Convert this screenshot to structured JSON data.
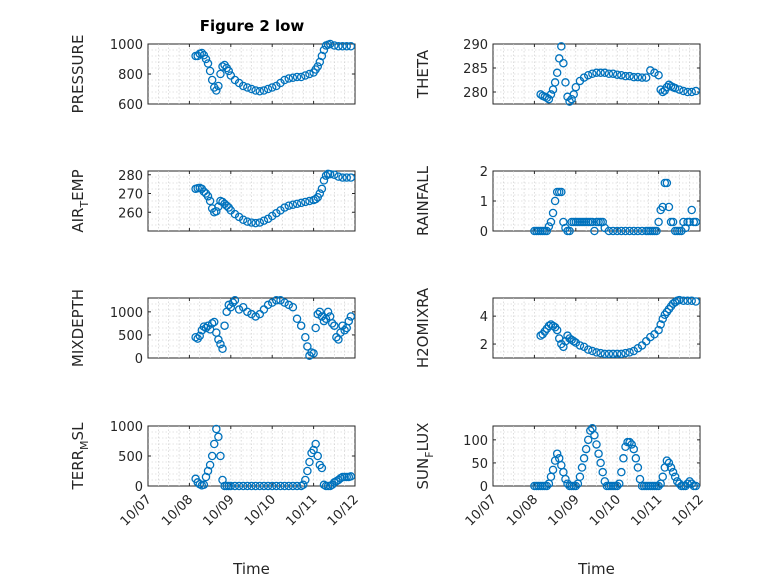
{
  "figure": {
    "title": "Figure 2 low",
    "xlabel": "Time",
    "xticks": [
      "10/07",
      "10/08",
      "10/09",
      "10/10",
      "10/11",
      "10/12"
    ],
    "marker_color": "#0072BD"
  },
  "chart_data": [
    {
      "type": "scatter",
      "ylabel": "PRESSURE",
      "xlim": [
        0,
        5
      ],
      "ylim": [
        600,
        1000
      ],
      "yticks": [
        600,
        800,
        1000
      ],
      "grid": true,
      "x": [
        1.15,
        1.2,
        1.25,
        1.3,
        1.35,
        1.4,
        1.45,
        1.5,
        1.55,
        1.6,
        1.65,
        1.7,
        1.75,
        1.8,
        1.85,
        1.9,
        1.95,
        2.0,
        2.1,
        2.2,
        2.3,
        2.4,
        2.5,
        2.6,
        2.7,
        2.8,
        2.9,
        3.0,
        3.1,
        3.2,
        3.3,
        3.4,
        3.5,
        3.6,
        3.7,
        3.8,
        3.9,
        4.0,
        4.05,
        4.1,
        4.15,
        4.2,
        4.25,
        4.3,
        4.35,
        4.4,
        4.5,
        4.6,
        4.7,
        4.8,
        4.9
      ],
      "y": [
        920,
        920,
        935,
        940,
        925,
        900,
        870,
        820,
        760,
        710,
        690,
        720,
        800,
        850,
        860,
        840,
        820,
        790,
        760,
        740,
        720,
        710,
        700,
        690,
        685,
        690,
        700,
        710,
        720,
        740,
        760,
        770,
        775,
        780,
        780,
        790,
        800,
        810,
        830,
        850,
        880,
        920,
        960,
        990,
        995,
        1000,
        990,
        985,
        985,
        985,
        985
      ]
    },
    {
      "type": "scatter",
      "ylabel": "THETA",
      "xlim": [
        0,
        5
      ],
      "ylim": [
        277.5,
        290
      ],
      "yticks": [
        280,
        285,
        290
      ],
      "grid": true,
      "x": [
        1.15,
        1.2,
        1.25,
        1.3,
        1.35,
        1.4,
        1.45,
        1.5,
        1.55,
        1.6,
        1.65,
        1.7,
        1.75,
        1.8,
        1.85,
        1.9,
        1.95,
        2.0,
        2.1,
        2.2,
        2.3,
        2.4,
        2.5,
        2.6,
        2.7,
        2.8,
        2.9,
        3.0,
        3.1,
        3.2,
        3.3,
        3.4,
        3.5,
        3.6,
        3.7,
        3.8,
        3.9,
        4.0,
        4.05,
        4.1,
        4.15,
        4.2,
        4.25,
        4.3,
        4.35,
        4.4,
        4.5,
        4.6,
        4.7,
        4.8,
        4.9
      ],
      "y": [
        279.5,
        279.2,
        279.0,
        278.8,
        278.5,
        279.5,
        280.5,
        282,
        284,
        287,
        289.5,
        286,
        282,
        279,
        278,
        278.5,
        279.5,
        281,
        282.3,
        283,
        283.5,
        283.8,
        284,
        284,
        284,
        283.8,
        283.8,
        283.6,
        283.5,
        283.3,
        283.3,
        283.1,
        283.1,
        283,
        283,
        284.5,
        284,
        283.5,
        280.5,
        280,
        280.3,
        281,
        281.5,
        281.2,
        281,
        280.8,
        280.5,
        280.2,
        280.0,
        280.0,
        280.2
      ]
    },
    {
      "type": "scatter",
      "ylabel": "AIR_T EMP",
      "xlim": [
        0,
        5
      ],
      "ylim": [
        250,
        282
      ],
      "yticks": [
        260,
        270,
        280
      ],
      "grid": true,
      "x": [
        1.15,
        1.2,
        1.25,
        1.3,
        1.35,
        1.4,
        1.45,
        1.5,
        1.55,
        1.6,
        1.65,
        1.7,
        1.75,
        1.8,
        1.85,
        1.9,
        1.95,
        2.0,
        2.1,
        2.2,
        2.3,
        2.4,
        2.5,
        2.6,
        2.7,
        2.8,
        2.9,
        3.0,
        3.1,
        3.2,
        3.3,
        3.4,
        3.5,
        3.6,
        3.7,
        3.8,
        3.9,
        4.0,
        4.05,
        4.1,
        4.15,
        4.2,
        4.25,
        4.3,
        4.35,
        4.4,
        4.5,
        4.6,
        4.7,
        4.8,
        4.9
      ],
      "y": [
        272.5,
        272.8,
        273,
        272.5,
        271,
        270,
        268.5,
        266,
        262,
        260,
        260.5,
        263,
        266,
        265.5,
        264.5,
        263.5,
        262.5,
        261,
        259,
        257.5,
        256,
        255,
        254.5,
        254.2,
        254.5,
        255.5,
        256.5,
        258,
        259.5,
        261,
        262.5,
        263.5,
        264,
        264.5,
        265,
        265.5,
        266,
        266.5,
        267,
        268,
        270,
        272.5,
        277,
        279.5,
        280.5,
        280.3,
        280,
        279,
        278.5,
        278.5,
        278.5
      ]
    },
    {
      "type": "scatter",
      "ylabel": "RAINFALL",
      "xlim": [
        0,
        5
      ],
      "ylim": [
        0,
        2
      ],
      "yticks": [
        0,
        1,
        2
      ],
      "grid": true,
      "x": [
        1.0,
        1.05,
        1.1,
        1.15,
        1.2,
        1.25,
        1.3,
        1.35,
        1.4,
        1.45,
        1.5,
        1.55,
        1.6,
        1.65,
        1.7,
        1.75,
        1.8,
        1.85,
        1.9,
        1.95,
        2.0,
        2.05,
        2.1,
        2.15,
        2.2,
        2.25,
        2.3,
        2.35,
        2.4,
        2.45,
        2.5,
        2.55,
        2.6,
        2.65,
        2.7,
        2.8,
        2.9,
        3.0,
        3.1,
        3.2,
        3.3,
        3.4,
        3.5,
        3.6,
        3.7,
        3.75,
        3.8,
        3.85,
        3.9,
        3.95,
        4.0,
        4.05,
        4.1,
        4.15,
        4.2,
        4.25,
        4.3,
        4.35,
        4.4,
        4.45,
        4.5,
        4.55,
        4.6,
        4.65,
        4.7,
        4.75,
        4.8,
        4.85,
        4.9
      ],
      "y": [
        0,
        0,
        0,
        0,
        0,
        0,
        0,
        0.15,
        0.3,
        0.6,
        1.0,
        1.3,
        1.3,
        1.3,
        0.3,
        0.1,
        0,
        0,
        0.3,
        0.3,
        0.3,
        0.3,
        0.3,
        0.3,
        0.3,
        0.3,
        0.3,
        0.3,
        0.3,
        0,
        0.3,
        0.3,
        0.3,
        0.3,
        0.1,
        0,
        0,
        0,
        0,
        0,
        0,
        0,
        0,
        0,
        0,
        0,
        0,
        0,
        0,
        0,
        0.3,
        0.7,
        0.8,
        1.6,
        1.6,
        0.8,
        0.3,
        0.3,
        0,
        0,
        0,
        0,
        0.3,
        0.1,
        0.3,
        0.3,
        0.7,
        0.3,
        0.3
      ]
    },
    {
      "type": "scatter",
      "ylabel": "MIXDEPTH",
      "xlim": [
        0,
        5
      ],
      "ylim": [
        0,
        1300
      ],
      "yticks": [
        0,
        500,
        1000
      ],
      "grid": true,
      "x": [
        1.15,
        1.2,
        1.25,
        1.3,
        1.35,
        1.4,
        1.45,
        1.5,
        1.55,
        1.6,
        1.65,
        1.7,
        1.75,
        1.8,
        1.85,
        1.9,
        1.95,
        2.0,
        2.05,
        2.1,
        2.2,
        2.3,
        2.4,
        2.5,
        2.6,
        2.7,
        2.8,
        2.9,
        3.0,
        3.1,
        3.2,
        3.3,
        3.4,
        3.5,
        3.6,
        3.7,
        3.8,
        3.85,
        3.9,
        3.95,
        4.0,
        4.05,
        4.1,
        4.15,
        4.2,
        4.25,
        4.3,
        4.35,
        4.4,
        4.45,
        4.5,
        4.55,
        4.6,
        4.65,
        4.7,
        4.75,
        4.8,
        4.85,
        4.9
      ],
      "y": [
        450,
        420,
        480,
        600,
        680,
        650,
        700,
        620,
        750,
        780,
        550,
        400,
        300,
        200,
        700,
        1000,
        1150,
        1100,
        1200,
        1250,
        1050,
        1100,
        1000,
        950,
        900,
        950,
        1050,
        1150,
        1200,
        1250,
        1250,
        1200,
        1150,
        1100,
        850,
        700,
        450,
        250,
        50,
        120,
        100,
        650,
        950,
        1000,
        900,
        800,
        850,
        1000,
        900,
        750,
        700,
        450,
        400,
        550,
        700,
        600,
        650,
        800,
        900
      ]
    },
    {
      "type": "scatter",
      "ylabel": "H2OMIXRA",
      "xlim": [
        0,
        5
      ],
      "ylim": [
        1,
        5.3
      ],
      "yticks": [
        2,
        4
      ],
      "grid": true,
      "x": [
        1.15,
        1.2,
        1.25,
        1.3,
        1.35,
        1.4,
        1.45,
        1.5,
        1.55,
        1.6,
        1.65,
        1.7,
        1.75,
        1.8,
        1.85,
        1.9,
        1.95,
        2.0,
        2.1,
        2.2,
        2.3,
        2.4,
        2.5,
        2.6,
        2.7,
        2.8,
        2.9,
        3.0,
        3.1,
        3.2,
        3.3,
        3.4,
        3.5,
        3.6,
        3.7,
        3.8,
        3.9,
        4.0,
        4.05,
        4.1,
        4.15,
        4.2,
        4.25,
        4.3,
        4.35,
        4.4,
        4.45,
        4.5,
        4.6,
        4.7,
        4.8,
        4.9
      ],
      "y": [
        2.6,
        2.7,
        2.9,
        3.1,
        3.3,
        3.4,
        3.3,
        3.2,
        3.0,
        2.4,
        2.0,
        1.8,
        2.2,
        2.6,
        2.4,
        2.3,
        2.2,
        2.1,
        1.9,
        1.8,
        1.6,
        1.5,
        1.4,
        1.35,
        1.3,
        1.3,
        1.3,
        1.3,
        1.3,
        1.35,
        1.4,
        1.5,
        1.7,
        1.9,
        2.2,
        2.5,
        2.7,
        3.0,
        3.4,
        3.8,
        4.1,
        4.3,
        4.5,
        4.7,
        4.9,
        5.0,
        5.1,
        5.15,
        5.1,
        5.1,
        5.1,
        5.05
      ]
    },
    {
      "type": "scatter",
      "ylabel": "TERR_M SL",
      "xlim": [
        0,
        5
      ],
      "ylim": [
        0,
        1000
      ],
      "yticks": [
        0,
        500,
        1000
      ],
      "grid": true,
      "x": [
        1.15,
        1.2,
        1.25,
        1.3,
        1.35,
        1.4,
        1.45,
        1.5,
        1.55,
        1.6,
        1.65,
        1.7,
        1.75,
        1.8,
        1.85,
        1.9,
        1.95,
        2.0,
        2.1,
        2.2,
        2.3,
        2.4,
        2.5,
        2.6,
        2.7,
        2.8,
        2.9,
        3.0,
        3.1,
        3.2,
        3.3,
        3.4,
        3.5,
        3.6,
        3.7,
        3.75,
        3.8,
        3.85,
        3.9,
        3.95,
        4.0,
        4.05,
        4.1,
        4.15,
        4.2,
        4.25,
        4.3,
        4.35,
        4.4,
        4.45,
        4.5,
        4.55,
        4.6,
        4.65,
        4.7,
        4.75,
        4.8,
        4.85,
        4.9
      ],
      "y": [
        120,
        60,
        30,
        10,
        20,
        150,
        250,
        350,
        500,
        700,
        950,
        820,
        500,
        100,
        0,
        0,
        0,
        0,
        0,
        0,
        0,
        0,
        0,
        0,
        0,
        0,
        0,
        0,
        0,
        0,
        0,
        0,
        0,
        0,
        0,
        20,
        100,
        250,
        400,
        550,
        600,
        700,
        500,
        350,
        300,
        20,
        0,
        0,
        0,
        20,
        60,
        80,
        100,
        130,
        150,
        150,
        150,
        150,
        160
      ]
    },
    {
      "type": "scatter",
      "ylabel": "SUN_F LUX",
      "xlim": [
        0,
        5
      ],
      "ylim": [
        0,
        130
      ],
      "yticks": [
        0,
        50,
        100
      ],
      "grid": true,
      "x": [
        1.0,
        1.05,
        1.1,
        1.15,
        1.2,
        1.25,
        1.3,
        1.35,
        1.4,
        1.45,
        1.5,
        1.55,
        1.6,
        1.65,
        1.7,
        1.75,
        1.8,
        1.85,
        1.9,
        1.95,
        2.0,
        2.05,
        2.1,
        2.15,
        2.2,
        2.25,
        2.3,
        2.35,
        2.4,
        2.45,
        2.5,
        2.55,
        2.6,
        2.65,
        2.7,
        2.75,
        2.8,
        2.85,
        2.9,
        2.95,
        3.0,
        3.05,
        3.1,
        3.15,
        3.2,
        3.25,
        3.3,
        3.35,
        3.4,
        3.45,
        3.5,
        3.55,
        3.6,
        3.65,
        3.7,
        3.75,
        3.8,
        3.85,
        3.9,
        3.95,
        4.0,
        4.05,
        4.1,
        4.15,
        4.2,
        4.25,
        4.3,
        4.35,
        4.4,
        4.45,
        4.5,
        4.55,
        4.6,
        4.65,
        4.7,
        4.75,
        4.8,
        4.85,
        4.9
      ],
      "y": [
        0,
        0,
        0,
        0,
        0,
        0,
        0,
        5,
        20,
        35,
        55,
        70,
        60,
        45,
        30,
        15,
        5,
        0,
        0,
        0,
        0,
        5,
        20,
        40,
        60,
        80,
        100,
        120,
        125,
        110,
        90,
        70,
        50,
        30,
        10,
        0,
        0,
        0,
        0,
        0,
        0,
        5,
        30,
        60,
        85,
        95,
        95,
        90,
        80,
        60,
        40,
        15,
        0,
        0,
        0,
        0,
        0,
        0,
        0,
        0,
        0,
        5,
        20,
        40,
        55,
        50,
        40,
        30,
        20,
        10,
        5,
        0,
        0,
        0,
        5,
        10,
        5,
        0,
        0
      ]
    }
  ]
}
